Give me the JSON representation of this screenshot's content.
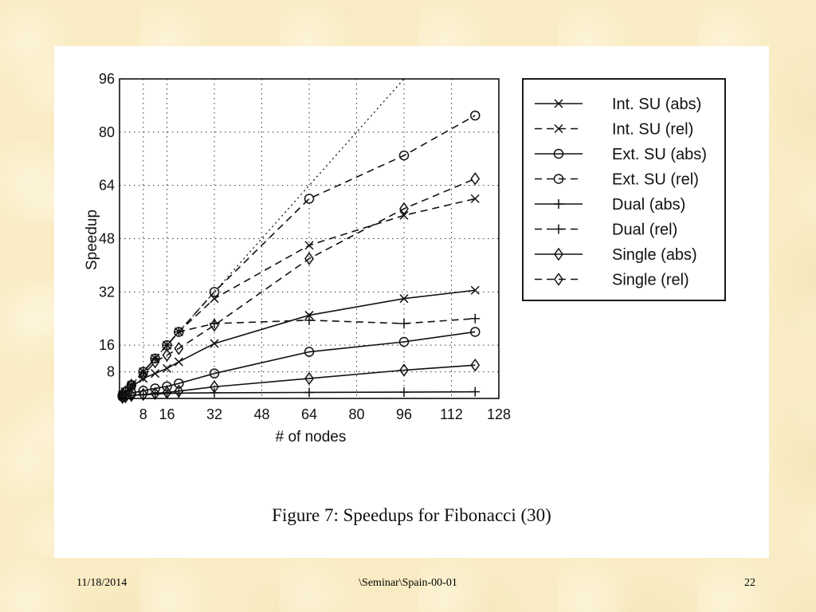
{
  "footer": {
    "date": "11/18/2014",
    "path": "\\Seminar\\Spain-00-01",
    "page": "22"
  },
  "figure": {
    "caption": "Figure 7: Speedups for Fibonacci (30)"
  },
  "chart_data": {
    "type": "line",
    "xlabel": "# of nodes",
    "ylabel": "Speedup",
    "xlim": [
      0,
      128
    ],
    "ylim": [
      0,
      96
    ],
    "xticks": [
      8,
      16,
      32,
      48,
      64,
      80,
      96,
      112,
      128
    ],
    "yticks": [
      8,
      16,
      32,
      48,
      64,
      80,
      96
    ],
    "grid": true,
    "legend_position": "right",
    "ideal_line": {
      "x": [
        0,
        96
      ],
      "y": [
        0,
        96
      ]
    },
    "series": [
      {
        "name": "Int. SU (abs)",
        "marker": "x",
        "dash": "solid",
        "x": [
          1,
          2,
          4,
          8,
          12,
          16,
          20,
          32,
          64,
          96,
          120
        ],
        "y": [
          1,
          1.8,
          3.4,
          6,
          7.5,
          9,
          11,
          16.5,
          25,
          30,
          32.5
        ]
      },
      {
        "name": "Int. SU (rel)",
        "marker": "x",
        "dash": "dashed",
        "x": [
          1,
          2,
          4,
          8,
          12,
          16,
          20,
          32,
          64,
          96,
          120
        ],
        "y": [
          1,
          2,
          4,
          8,
          12,
          16,
          20,
          30,
          46,
          55,
          60
        ]
      },
      {
        "name": "Ext. SU (abs)",
        "marker": "circle",
        "dash": "solid",
        "x": [
          1,
          2,
          4,
          8,
          12,
          16,
          20,
          32,
          64,
          96,
          120
        ],
        "y": [
          0.5,
          0.9,
          1.6,
          2.3,
          3,
          3.6,
          4.5,
          7.5,
          14,
          17,
          20
        ]
      },
      {
        "name": "Ext. SU (rel)",
        "marker": "circle",
        "dash": "dashed",
        "x": [
          1,
          2,
          4,
          8,
          12,
          16,
          20,
          32,
          64,
          96,
          120
        ],
        "y": [
          1,
          2,
          4,
          8,
          12,
          16,
          20,
          32,
          60,
          73,
          85
        ]
      },
      {
        "name": "Dual (abs)",
        "marker": "plus",
        "dash": "solid",
        "x": [
          1,
          2,
          4,
          8,
          12,
          16,
          20,
          32,
          64,
          96,
          120
        ],
        "y": [
          0.5,
          0.7,
          0.9,
          1.1,
          1.3,
          1.5,
          1.6,
          1.7,
          1.8,
          1.9,
          2
        ]
      },
      {
        "name": "Dual (rel)",
        "marker": "plus",
        "dash": "dashed",
        "x": [
          1,
          2,
          4,
          8,
          12,
          16,
          20,
          32,
          64,
          96,
          120
        ],
        "y": [
          1,
          2,
          4,
          8,
          12,
          16,
          20,
          22.5,
          23.5,
          22.5,
          24
        ]
      },
      {
        "name": "Single (abs)",
        "marker": "diamond",
        "dash": "solid",
        "x": [
          1,
          2,
          4,
          8,
          12,
          16,
          20,
          32,
          64,
          96,
          120
        ],
        "y": [
          0.3,
          0.5,
          0.9,
          1.2,
          1.5,
          1.8,
          2.2,
          3.5,
          6,
          8.5,
          10
        ]
      },
      {
        "name": "Single (rel)",
        "marker": "diamond",
        "dash": "dashed",
        "x": [
          1,
          2,
          4,
          8,
          12,
          16,
          20,
          32,
          64,
          96,
          120
        ],
        "y": [
          1,
          2,
          4,
          7,
          11,
          13,
          15,
          22,
          42,
          57,
          66
        ]
      }
    ]
  }
}
